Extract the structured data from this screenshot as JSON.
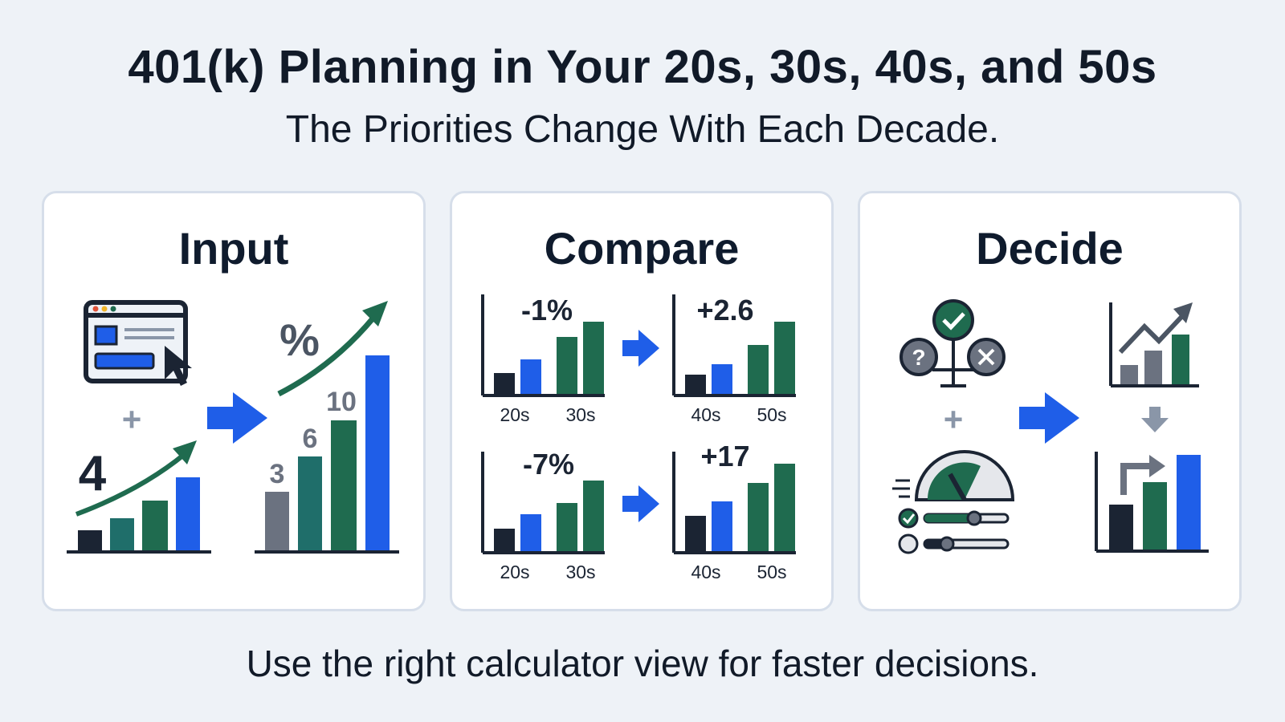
{
  "header": {
    "title": "401(k) Planning in Your 20s, 30s, 40s, and 50s",
    "subtitle": "The Priorities Change With Each Decade."
  },
  "panels": [
    {
      "title": "Input",
      "icons": [
        "browser-window-icon",
        "cursor-icon",
        "plus-icon",
        "trend-arrow-icon",
        "right-arrow-icon",
        "percent-symbol"
      ],
      "small_chart_label": "4",
      "big_chart_labels": [
        "3",
        "6",
        "10"
      ],
      "percent": "%",
      "plus": "+"
    },
    {
      "title": "Compare",
      "icons": [
        "right-arrow-icon"
      ],
      "charts": [
        {
          "value": "-1%",
          "xlabels": [
            "20s",
            "30s"
          ]
        },
        {
          "value": "+2.6",
          "xlabels": [
            "40s",
            "50s"
          ]
        },
        {
          "value": "-7%",
          "xlabels": [
            "20s",
            "30s"
          ]
        },
        {
          "value": "+17",
          "xlabels": [
            "40s",
            "50s"
          ]
        }
      ]
    },
    {
      "title": "Decide",
      "icons": [
        "decision-tree-icon",
        "check-icon",
        "question-icon",
        "x-icon",
        "plus-icon",
        "gauge-icon",
        "slider-icon",
        "trend-chart-icon",
        "down-arrow-icon",
        "right-arrow-icon",
        "bar-chart-icon"
      ],
      "decision_labels": [
        "?"
      ],
      "plus": "+"
    }
  ],
  "footer": {
    "text": "Use the right calculator view for faster decisions."
  },
  "colors": {
    "navy": "#1b2433",
    "teal": "#1f6e6a",
    "green": "#1f6b4f",
    "blue": "#1f5ee8",
    "gray": "#6b7280",
    "arrow_blue": "#1f5ee8"
  }
}
